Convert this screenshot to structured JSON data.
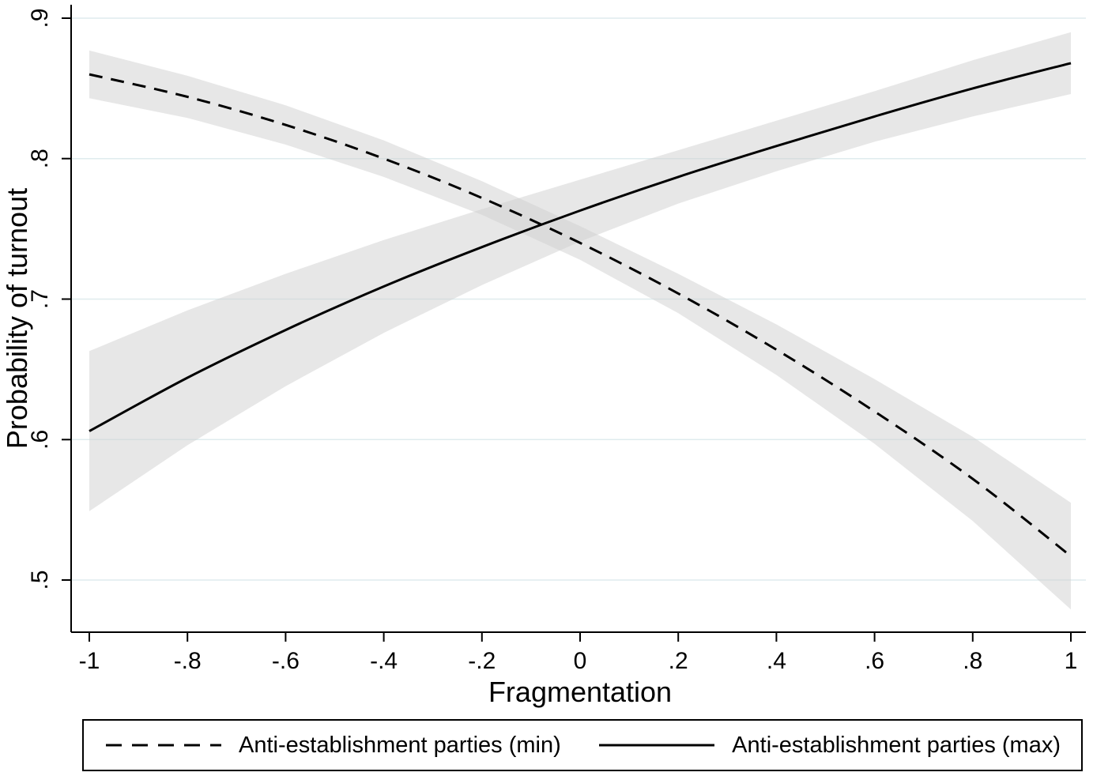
{
  "chart_data": {
    "type": "line",
    "title": "",
    "xlabel": "Fragmentation",
    "ylabel": "Probability of turnout",
    "xlim": [
      -1,
      1
    ],
    "ylim": [
      0.5,
      0.9
    ],
    "grid": "horizontal",
    "legend_position": "bottom",
    "x_ticks": {
      "values": [
        -1,
        -0.8,
        -0.6,
        -0.4,
        -0.2,
        0,
        0.2,
        0.4,
        0.6,
        0.8,
        1
      ],
      "labels": [
        "-1",
        "-.8",
        "-.6",
        "-.4",
        "-.2",
        "0",
        ".2",
        ".4",
        ".6",
        ".8",
        "1"
      ]
    },
    "y_ticks": {
      "values": [
        0.5,
        0.6,
        0.7,
        0.8,
        0.9
      ],
      "labels": [
        ".5",
        ".6",
        ".7",
        ".8",
        ".9"
      ]
    },
    "x": [
      -1,
      -0.8,
      -0.6,
      -0.4,
      -0.2,
      0,
      0.2,
      0.4,
      0.6,
      0.8,
      1
    ],
    "series": [
      {
        "name": "Anti-establishment parties (min)",
        "style": "dashed",
        "values": [
          0.86,
          0.844,
          0.824,
          0.8,
          0.772,
          0.74,
          0.704,
          0.664,
          0.62,
          0.572,
          0.517
        ],
        "ci_lower": [
          0.843,
          0.829,
          0.81,
          0.787,
          0.76,
          0.728,
          0.69,
          0.646,
          0.597,
          0.542,
          0.479
        ],
        "ci_upper": [
          0.877,
          0.859,
          0.838,
          0.813,
          0.784,
          0.752,
          0.718,
          0.682,
          0.643,
          0.602,
          0.555
        ]
      },
      {
        "name": "Anti-establishment parties (max)",
        "style": "solid",
        "values": [
          0.606,
          0.644,
          0.678,
          0.709,
          0.737,
          0.763,
          0.787,
          0.809,
          0.83,
          0.85,
          0.868
        ],
        "ci_lower": [
          0.549,
          0.596,
          0.638,
          0.676,
          0.71,
          0.741,
          0.768,
          0.791,
          0.812,
          0.83,
          0.846
        ],
        "ci_upper": [
          0.663,
          0.692,
          0.718,
          0.742,
          0.764,
          0.785,
          0.806,
          0.827,
          0.848,
          0.87,
          0.89
        ]
      }
    ],
    "colors": {
      "line": "#000000",
      "ci_fill": "#dedede",
      "grid": "#dfecee",
      "background": "#ffffff"
    }
  }
}
